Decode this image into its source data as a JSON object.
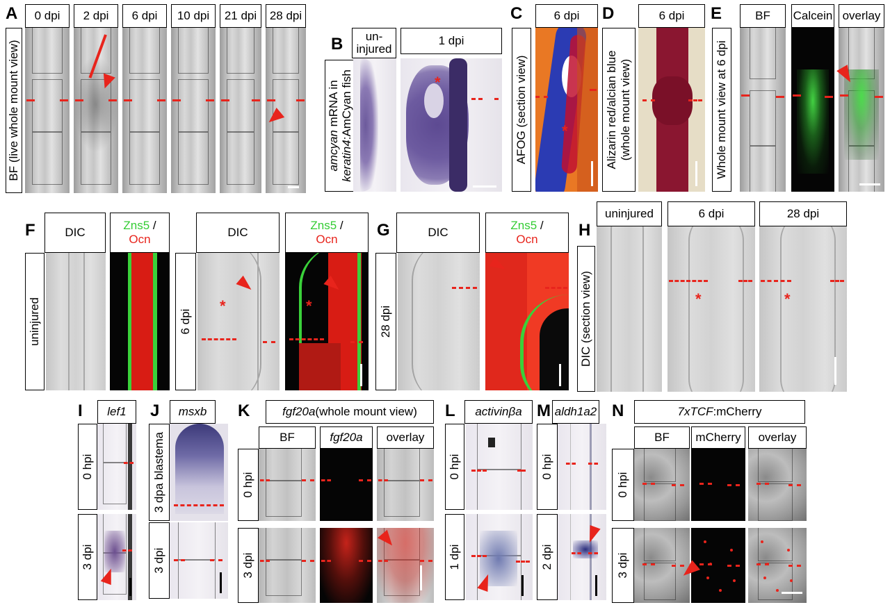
{
  "panels": {
    "A": {
      "letter": "A",
      "side": "BF (live whole mount view)",
      "cols": [
        "0 dpi",
        "2 dpi",
        "6 dpi",
        "10 dpi",
        "21 dpi",
        "28 dpi"
      ]
    },
    "B": {
      "letter": "B",
      "side_italic": "amcyan",
      "side_rest": " mRNA in",
      "side_line2_italic": "keratin4",
      "side_line2_rest": ":AmCyan fish",
      "col1_line1": "un-",
      "col1_line2": "injured",
      "col2": "1 dpi"
    },
    "C": {
      "letter": "C",
      "header": "6 dpi",
      "side": "AFOG (section view)"
    },
    "D": {
      "letter": "D",
      "header": "6 dpi",
      "side_line1": "Alizarin red/alcian blue",
      "side_line2": "(whole mount view)"
    },
    "E": {
      "letter": "E",
      "side": "Whole mount view at 6 dpi",
      "cols": [
        "BF",
        "Calcein",
        "overlay"
      ]
    },
    "F": {
      "letter": "F",
      "dic": "DIC",
      "stain_green": "Zns5",
      "stain_sep": " /",
      "stain_red": "Ocn",
      "row1": "uninjured",
      "row2": "6 dpi"
    },
    "G": {
      "letter": "G",
      "dic": "DIC",
      "stain_green": "Zns5",
      "stain_sep": " /",
      "stain_red": "Ocn",
      "row": "28 dpi"
    },
    "H": {
      "letter": "H",
      "side": "DIC (section view)",
      "cols": [
        "uninjured",
        "6 dpi",
        "28 dpi"
      ]
    },
    "I": {
      "letter": "I",
      "gene": "lef1",
      "rows": [
        "0 hpi",
        "3 dpi"
      ]
    },
    "J": {
      "letter": "J",
      "gene": "msxb",
      "rows": [
        "3 dpa blastema",
        "3 dpi"
      ]
    },
    "K": {
      "letter": "K",
      "gene": "fgf20a",
      "gene_rest": " (whole mount view)",
      "cols": [
        "BF",
        "fgf20a",
        "overlay"
      ],
      "rows": [
        "0 hpi",
        "3 dpi"
      ]
    },
    "L": {
      "letter": "L",
      "gene": "activinβa",
      "rows": [
        "0 hpi",
        "1 dpi"
      ]
    },
    "M": {
      "letter": "M",
      "gene": "aldh1a2",
      "rows": [
        "0 hpi",
        "2 dpi"
      ]
    },
    "N": {
      "letter": "N",
      "gene": "7xTCF",
      "gene_rest": ":mCherry",
      "cols": [
        "BF",
        "mCherry",
        "overlay"
      ],
      "rows": [
        "0 hpi",
        "3 dpi"
      ]
    }
  },
  "colors": {
    "marker_red": "#e8241c",
    "zns5_green": "#33cc33",
    "ocn_red": "#e8241c"
  }
}
